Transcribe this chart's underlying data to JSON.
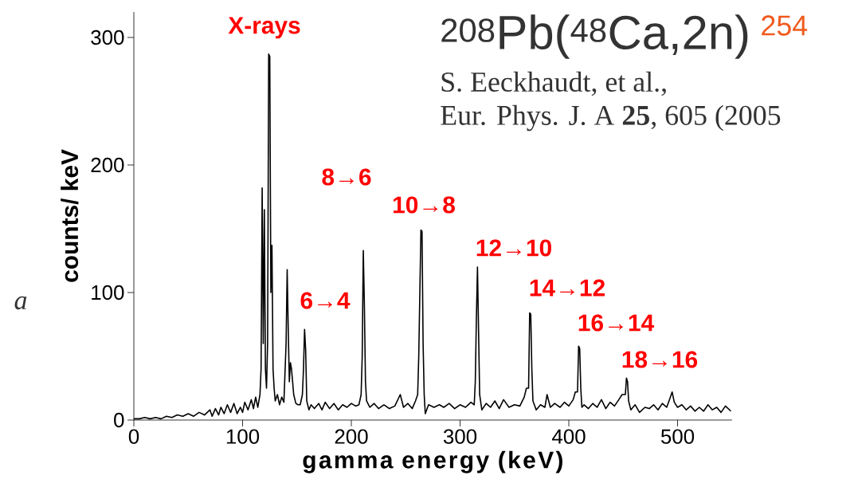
{
  "chart_data": {
    "type": "line",
    "title": "$^{208}$Pb($^{48}$Ca,2n)",
    "subtitle": "254",
    "xlabel": "gamma energy (keV)",
    "ylabel": "counts/ keV",
    "x": [
      0,
      5,
      10,
      15,
      20,
      25,
      30,
      35,
      40,
      45,
      50,
      55,
      60,
      65,
      70,
      72,
      75,
      78,
      80,
      83,
      86,
      89,
      92,
      95,
      98,
      100,
      102,
      105,
      108,
      110,
      112,
      114,
      116,
      117,
      118,
      119,
      120,
      121,
      122,
      123,
      124,
      125,
      126,
      127,
      128,
      129,
      130,
      132,
      134,
      136,
      138,
      140,
      141,
      142,
      143,
      144,
      145,
      146,
      147,
      149,
      151,
      153,
      155,
      156,
      157,
      158,
      159,
      161,
      163,
      166,
      170,
      173,
      176,
      180,
      184,
      188,
      192,
      196,
      200,
      204,
      207,
      209,
      210,
      211,
      212,
      213,
      214,
      217,
      221,
      225,
      230,
      235,
      240,
      245,
      248,
      252,
      256,
      259,
      261,
      262,
      263,
      264,
      265,
      266,
      267,
      268,
      271,
      276,
      281,
      285,
      290,
      295,
      300,
      305,
      310,
      313,
      314,
      315,
      316,
      317,
      318,
      320,
      324,
      328,
      332,
      336,
      340,
      345,
      350,
      355,
      359,
      361,
      363,
      364,
      365,
      366,
      367,
      370,
      374,
      378,
      380,
      383,
      387,
      392,
      396,
      400,
      404,
      406,
      408,
      409,
      410,
      411,
      412,
      414,
      418,
      422,
      426,
      430,
      434,
      438,
      442,
      446,
      449,
      452,
      453,
      454,
      455,
      457,
      461,
      465,
      470,
      474,
      478,
      482,
      486,
      490,
      493,
      495,
      497,
      500,
      504,
      508,
      512,
      516,
      520,
      524,
      528,
      532,
      536,
      540,
      544,
      549
    ],
    "values": [
      1,
      1,
      2,
      1,
      2,
      1,
      3,
      2,
      4,
      3,
      5,
      3,
      6,
      4,
      8,
      3,
      9,
      4,
      10,
      5,
      12,
      6,
      13,
      5,
      10,
      6,
      14,
      8,
      16,
      9,
      18,
      10,
      20,
      40,
      182,
      60,
      165,
      40,
      25,
      60,
      287,
      285,
      100,
      137,
      40,
      25,
      15,
      20,
      12,
      18,
      14,
      60,
      118,
      70,
      30,
      45,
      40,
      30,
      20,
      13,
      12,
      12,
      20,
      40,
      71,
      55,
      15,
      8,
      12,
      9,
      13,
      8,
      14,
      9,
      13,
      8,
      12,
      10,
      13,
      11,
      12,
      20,
      50,
      133,
      90,
      30,
      15,
      10,
      13,
      9,
      12,
      9,
      11,
      20,
      10,
      13,
      9,
      15,
      20,
      50,
      100,
      149,
      148,
      60,
      20,
      5,
      12,
      10,
      12,
      10,
      13,
      9,
      12,
      10,
      14,
      12,
      30,
      80,
      120,
      70,
      20,
      8,
      13,
      10,
      15,
      9,
      16,
      10,
      12,
      11,
      18,
      25,
      25,
      84,
      83,
      40,
      15,
      8,
      12,
      10,
      20,
      10,
      13,
      10,
      14,
      11,
      16,
      22,
      22,
      58,
      56,
      25,
      10,
      12,
      9,
      13,
      10,
      16,
      9,
      14,
      11,
      16,
      20,
      20,
      33,
      30,
      15,
      8,
      12,
      6,
      10,
      9,
      12,
      8,
      13,
      10,
      17,
      22,
      14,
      10,
      12,
      8,
      11,
      7,
      10,
      7,
      12,
      8,
      10,
      6,
      11,
      7
    ],
    "color": "#000000",
    "xlim": [
      0,
      550
    ],
    "ylim": [
      0,
      320
    ],
    "xticks": [
      0,
      100,
      200,
      300,
      400,
      500
    ],
    "yticks": [
      0,
      100,
      200,
      300
    ],
    "annotations": [
      "X-rays",
      "6→4",
      "8→6",
      "10→8",
      "12→10",
      "14→12",
      "16→14",
      "18→16",
      "S. Eeckhaudt, et al.,",
      "Eur. Phys. J. A **25**,  605 (2005",
      "a"
    ]
  }
}
